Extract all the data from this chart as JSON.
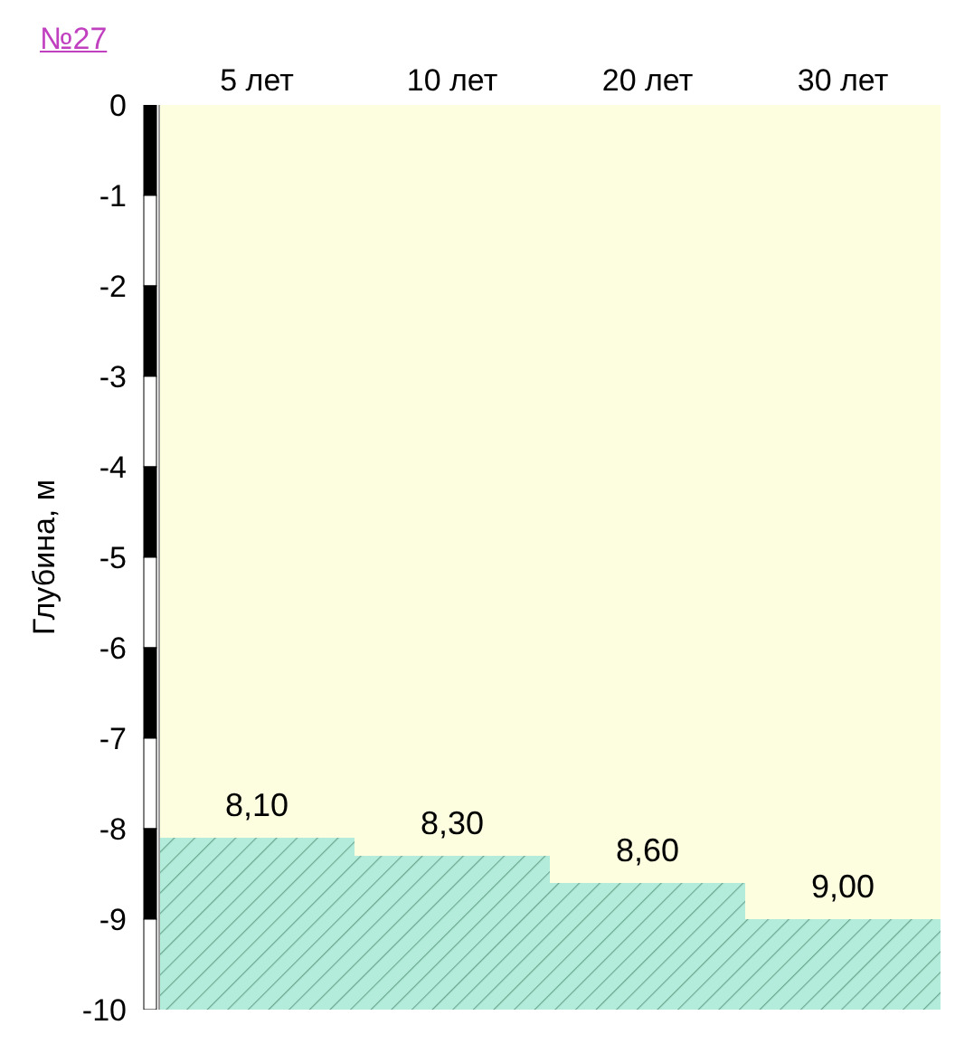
{
  "chart_data": {
    "type": "bar",
    "title": "№27",
    "ylabel": "Глубина, м",
    "categories": [
      "5 лет",
      "10 лет",
      "20 лет",
      "30 лет"
    ],
    "stacked": true,
    "series": [
      {
        "color": "#fdfde0",
        "values": [
          -8.1,
          -8.3,
          -8.6,
          -9.0
        ]
      },
      {
        "color": "#b4ecdc",
        "values": [
          -1.9,
          -1.7,
          -1.4,
          -1.0
        ]
      }
    ],
    "annotations": [
      {
        "text": "8,10",
        "x": "5 лет",
        "y": -8.1
      },
      {
        "text": "8,30",
        "x": "10 лет",
        "y": -8.3
      },
      {
        "text": "8,60",
        "x": "20 лет",
        "y": -8.6
      },
      {
        "text": "9,00",
        "x": "30 лет",
        "y": -9.0
      }
    ],
    "ylim": [
      -10,
      0
    ],
    "yticks": [
      0,
      -1,
      -2,
      -3,
      -4,
      -5,
      -6,
      -7,
      -8,
      -9,
      -10
    ]
  }
}
